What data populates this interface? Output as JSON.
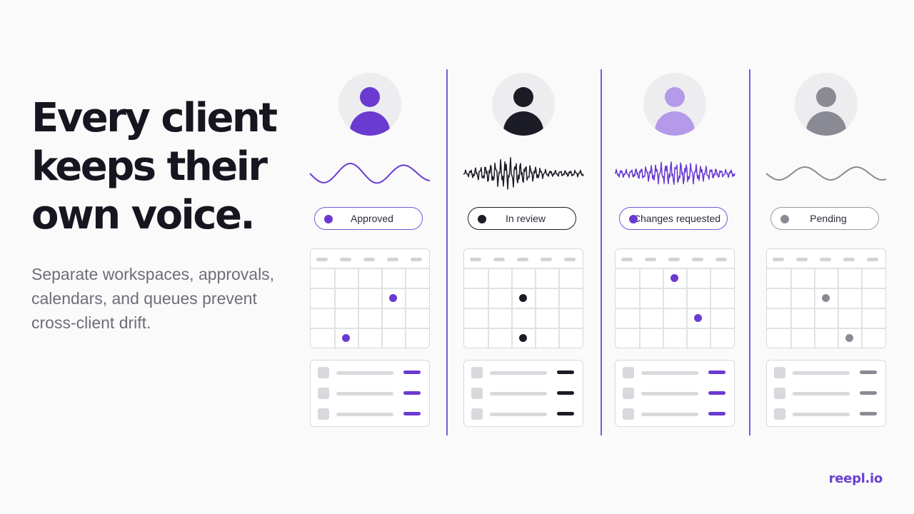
{
  "headline": [
    "Every client",
    "keeps their",
    "own voice."
  ],
  "subtitle": [
    "Separate workspaces, approvals,",
    "calendars, and queues prevent",
    "cross-client drift."
  ],
  "brand": "reepl.io",
  "clients": [
    {
      "name": "client-1",
      "accent": "#6a3ad1",
      "avatar_color": "#6a3ad1",
      "status": "Approved",
      "status_border": "#7b56d8",
      "wave_style": "smooth",
      "calendar_events": [
        {
          "col": 3,
          "row": 1
        },
        {
          "col": 1,
          "row": 3
        }
      ],
      "queue_marks": [
        "#6a3ad1",
        "#6a3ad1",
        "#6a3ad1"
      ]
    },
    {
      "name": "client-2",
      "accent": "#1b1c26",
      "avatar_color": "#1b1c26",
      "status": "In review",
      "status_border": "#1b1c26",
      "wave_style": "spiky",
      "calendar_events": [
        {
          "col": 2,
          "row": 1
        },
        {
          "col": 2,
          "row": 3
        }
      ],
      "queue_marks": [
        "#1b1c26",
        "#1b1c26",
        "#1b1c26"
      ]
    },
    {
      "name": "client-3",
      "accent": "#6a3ad1",
      "avatar_color": "#b49ae8",
      "status": "Changes requested",
      "status_border": "#7b56d8",
      "wave_style": "jagged",
      "calendar_events": [
        {
          "col": 2,
          "row": 0
        },
        {
          "col": 3,
          "row": 2
        }
      ],
      "queue_marks": [
        "#6a3ad1",
        "#6a3ad1",
        "#6a3ad1"
      ]
    },
    {
      "name": "client-4",
      "accent": "#8a8a94",
      "avatar_color": "#8a8a94",
      "status": "Pending",
      "status_border": "#9a9aa4",
      "wave_style": "gentle",
      "calendar_events": [
        {
          "col": 2,
          "row": 1
        },
        {
          "col": 3,
          "row": 3
        }
      ],
      "queue_marks": [
        "#8a8a94",
        "#8a8a94",
        "#8a8a94"
      ]
    }
  ]
}
